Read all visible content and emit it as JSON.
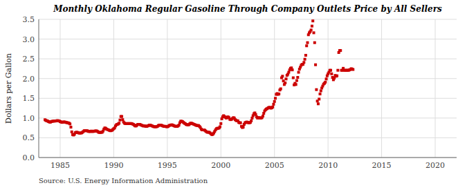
{
  "chart_data": {
    "type": "scatter",
    "title": "Monthly Oklahoma Regular Gasoline Through Company Outlets Price by All Sellers",
    "ylabel": "Dollars per Gallon",
    "annotations": [
      "Source: U.S. Energy Information Administration"
    ],
    "color": "#CC0000",
    "marker": "square",
    "grid": true,
    "xlim": [
      1983,
      2022
    ],
    "ylim": [
      0.0,
      3.5
    ],
    "xticks": [
      1985,
      1990,
      1995,
      2000,
      2005,
      2010,
      2015,
      2020
    ],
    "yticks": [
      {
        "value": 0.0,
        "label": "0.0"
      },
      0.5,
      {
        "value": 1.0,
        "label": "1.0"
      },
      1.5,
      {
        "value": 2.0,
        "label": "2.0"
      },
      2.5,
      {
        "value": 3.0,
        "label": "3.0"
      },
      3.5
    ],
    "x": [
      1983.583,
      1983.667,
      1983.75,
      1983.833,
      1983.917,
      1984.0,
      1984.083,
      1984.167,
      1984.25,
      1984.333,
      1984.417,
      1984.5,
      1984.583,
      1984.667,
      1984.75,
      1984.833,
      1984.917,
      1985.0,
      1985.083,
      1985.167,
      1985.25,
      1985.333,
      1985.417,
      1985.5,
      1985.583,
      1985.667,
      1985.75,
      1985.833,
      1985.917,
      1986.0,
      1986.083,
      1986.167,
      1986.25,
      1986.333,
      1986.417,
      1986.5,
      1986.583,
      1986.667,
      1986.75,
      1986.833,
      1986.917,
      1987.0,
      1987.083,
      1987.167,
      1987.25,
      1987.333,
      1987.417,
      1987.5,
      1987.583,
      1987.667,
      1987.75,
      1987.833,
      1987.917,
      1988.0,
      1988.083,
      1988.167,
      1988.25,
      1988.333,
      1988.417,
      1988.5,
      1988.583,
      1988.667,
      1988.75,
      1988.833,
      1988.917,
      1989.0,
      1989.083,
      1989.167,
      1989.25,
      1989.333,
      1989.417,
      1989.5,
      1989.583,
      1989.667,
      1989.75,
      1989.833,
      1989.917,
      1990.0,
      1990.083,
      1990.167,
      1990.25,
      1990.333,
      1990.417,
      1990.5,
      1990.583,
      1990.667,
      1990.75,
      1990.833,
      1990.917,
      1991.0,
      1991.083,
      1991.167,
      1991.25,
      1991.333,
      1991.417,
      1991.5,
      1991.583,
      1991.667,
      1991.75,
      1991.833,
      1991.917,
      1992.0,
      1992.083,
      1992.167,
      1992.25,
      1992.333,
      1992.417,
      1992.5,
      1992.583,
      1992.667,
      1992.75,
      1992.833,
      1992.917,
      1993.0,
      1993.083,
      1993.167,
      1993.25,
      1993.333,
      1993.417,
      1993.5,
      1993.583,
      1993.667,
      1993.75,
      1993.833,
      1993.917,
      1994.0,
      1994.083,
      1994.167,
      1994.25,
      1994.333,
      1994.417,
      1994.5,
      1994.583,
      1994.667,
      1994.75,
      1994.833,
      1994.917,
      1995.0,
      1995.083,
      1995.167,
      1995.25,
      1995.333,
      1995.417,
      1995.5,
      1995.583,
      1995.667,
      1995.75,
      1995.833,
      1995.917,
      1996.0,
      1996.083,
      1996.167,
      1996.25,
      1996.333,
      1996.417,
      1996.5,
      1996.583,
      1996.667,
      1996.75,
      1996.833,
      1996.917,
      1997.0,
      1997.083,
      1997.167,
      1997.25,
      1997.333,
      1997.417,
      1997.5,
      1997.583,
      1997.667,
      1997.75,
      1997.833,
      1997.917,
      1998.0,
      1998.083,
      1998.167,
      1998.25,
      1998.333,
      1998.417,
      1998.5,
      1998.583,
      1998.667,
      1998.75,
      1998.833,
      1998.917,
      1999.0,
      1999.083,
      1999.167,
      1999.25,
      1999.333,
      1999.417,
      1999.5,
      1999.583,
      1999.667,
      1999.75,
      1999.833,
      1999.917,
      2000.0,
      2000.083,
      2000.167,
      2000.25,
      2000.333,
      2000.417,
      2000.5,
      2000.583,
      2000.667,
      2000.75,
      2000.833,
      2000.917,
      2001.0,
      2001.083,
      2001.167,
      2001.25,
      2001.333,
      2001.417,
      2001.5,
      2001.583,
      2001.667,
      2001.75,
      2001.833,
      2001.917,
      2002.0,
      2002.083,
      2002.167,
      2002.25,
      2002.333,
      2002.417,
      2002.5,
      2002.583,
      2002.667,
      2002.75,
      2002.833,
      2002.917,
      2003.0,
      2003.083,
      2003.167,
      2003.25,
      2003.333,
      2003.417,
      2003.5,
      2003.583,
      2003.667,
      2003.75,
      2003.833,
      2003.917,
      2004.0,
      2004.083,
      2004.167,
      2004.25,
      2004.333,
      2004.417,
      2004.5,
      2004.583,
      2004.667,
      2004.75,
      2004.833,
      2004.917,
      2005.0,
      2005.083,
      2005.167,
      2005.25,
      2005.333,
      2005.417,
      2005.5,
      2005.583,
      2005.667,
      2005.75,
      2005.833,
      2005.917,
      2006.0,
      2006.083,
      2006.167,
      2006.25,
      2006.333,
      2006.417,
      2006.5,
      2006.583,
      2006.667,
      2006.75,
      2006.833,
      2006.917,
      2007.0,
      2007.083,
      2007.167,
      2007.25,
      2007.333,
      2007.417,
      2007.5,
      2007.583,
      2007.667,
      2007.75,
      2007.833,
      2007.917,
      2008.0,
      2008.083,
      2008.167,
      2008.25,
      2008.333,
      2008.417,
      2008.5,
      2008.583,
      2008.667,
      2008.75,
      2008.833,
      2008.917,
      2009.0,
      2009.083,
      2009.167,
      2009.25,
      2009.333,
      2009.417,
      2009.5,
      2009.583,
      2009.667,
      2009.75,
      2009.833,
      2009.917,
      2010.0,
      2010.083,
      2010.167,
      2010.25,
      2010.333,
      2010.417,
      2010.5,
      2010.583,
      2010.667,
      2010.75,
      2010.833,
      2010.917,
      2011.0,
      2011.083,
      2011.167,
      2011.25,
      2011.333,
      2011.417,
      2011.5,
      2011.583,
      2011.667,
      2011.75,
      2011.833,
      2011.917,
      2012.0,
      2012.083,
      2012.167,
      2012.25,
      2012.333
    ],
    "values": [
      0.957,
      0.94,
      0.931,
      0.924,
      0.91,
      0.899,
      0.895,
      0.91,
      0.918,
      0.92,
      0.924,
      0.924,
      0.926,
      0.93,
      0.934,
      0.93,
      0.926,
      0.91,
      0.9,
      0.89,
      0.897,
      0.901,
      0.9,
      0.894,
      0.887,
      0.882,
      0.878,
      0.869,
      0.851,
      0.77,
      0.65,
      0.58,
      0.57,
      0.59,
      0.63,
      0.64,
      0.64,
      0.63,
      0.62,
      0.62,
      0.62,
      0.625,
      0.64,
      0.66,
      0.68,
      0.68,
      0.68,
      0.68,
      0.67,
      0.66,
      0.66,
      0.66,
      0.67,
      0.66,
      0.66,
      0.668,
      0.67,
      0.675,
      0.672,
      0.66,
      0.64,
      0.635,
      0.635,
      0.64,
      0.64,
      0.67,
      0.72,
      0.75,
      0.74,
      0.72,
      0.71,
      0.7,
      0.69,
      0.68,
      0.68,
      0.69,
      0.71,
      0.73,
      0.75,
      0.8,
      0.83,
      0.84,
      0.85,
      0.87,
      0.95,
      1.04,
      1.04,
      0.96,
      0.9,
      0.87,
      0.86,
      0.86,
      0.86,
      0.86,
      0.86,
      0.86,
      0.86,
      0.86,
      0.85,
      0.84,
      0.82,
      0.8,
      0.8,
      0.82,
      0.84,
      0.84,
      0.84,
      0.83,
      0.82,
      0.81,
      0.8,
      0.8,
      0.8,
      0.79,
      0.79,
      0.8,
      0.81,
      0.82,
      0.82,
      0.81,
      0.8,
      0.79,
      0.78,
      0.78,
      0.78,
      0.78,
      0.79,
      0.81,
      0.82,
      0.82,
      0.82,
      0.81,
      0.8,
      0.79,
      0.79,
      0.79,
      0.78,
      0.78,
      0.79,
      0.81,
      0.82,
      0.82,
      0.83,
      0.82,
      0.81,
      0.8,
      0.79,
      0.79,
      0.79,
      0.8,
      0.82,
      0.88,
      0.92,
      0.92,
      0.91,
      0.89,
      0.87,
      0.86,
      0.84,
      0.83,
      0.83,
      0.83,
      0.85,
      0.87,
      0.87,
      0.86,
      0.85,
      0.84,
      0.83,
      0.82,
      0.81,
      0.81,
      0.81,
      0.79,
      0.76,
      0.72,
      0.7,
      0.7,
      0.7,
      0.69,
      0.67,
      0.65,
      0.64,
      0.64,
      0.64,
      0.62,
      0.6,
      0.58,
      0.59,
      0.62,
      0.66,
      0.7,
      0.73,
      0.74,
      0.74,
      0.75,
      0.78,
      0.86,
      0.98,
      1.03,
      1.06,
      1.04,
      1.02,
      1.0,
      1.02,
      1.03,
      1.01,
      0.97,
      0.96,
      0.97,
      0.99,
      1.01,
      1.0,
      0.96,
      0.94,
      0.93,
      0.93,
      0.89,
      0.88,
      0.88,
      0.79,
      0.76,
      0.77,
      0.84,
      0.88,
      0.89,
      0.9,
      0.89,
      0.88,
      0.88,
      0.89,
      0.93,
      1.0,
      1.06,
      1.11,
      1.13,
      1.09,
      1.03,
      1.0,
      1.01,
      1.01,
      1.0,
      1.0,
      1.01,
      1.05,
      1.12,
      1.18,
      1.21,
      1.23,
      1.24,
      1.26,
      1.27,
      1.27,
      1.25,
      1.26,
      1.28,
      1.35,
      1.42,
      1.5,
      1.6,
      1.62,
      1.6,
      1.61,
      1.71,
      1.74,
      2.02,
      2.06,
      1.94,
      1.85,
      1.89,
      1.99,
      2.08,
      2.11,
      2.16,
      2.22,
      2.26,
      2.27,
      2.22,
      2.02,
      1.84,
      1.88,
      1.85,
      1.95,
      2.03,
      2.16,
      2.24,
      2.29,
      2.34,
      2.36,
      2.36,
      2.41,
      2.49,
      2.59,
      2.83,
      2.91,
      3.11,
      3.16,
      3.19,
      3.23,
      3.33,
      3.46,
      3.16,
      2.91,
      2.35,
      1.72,
      1.43,
      1.36,
      1.48,
      1.61,
      1.69,
      1.76,
      1.81,
      1.86,
      1.88,
      1.91,
      1.99,
      2.07,
      2.12,
      2.16,
      2.21,
      2.21,
      2.12,
      2.03,
      1.97,
      2.01,
      2.08,
      2.06,
      2.07,
      2.21,
      2.66,
      2.71,
      2.71,
      2.21,
      2.21,
      2.26,
      2.21,
      2.21,
      2.21,
      2.21,
      2.21,
      2.21,
      2.22,
      2.23,
      2.25,
      2.24,
      2.23
    ]
  }
}
